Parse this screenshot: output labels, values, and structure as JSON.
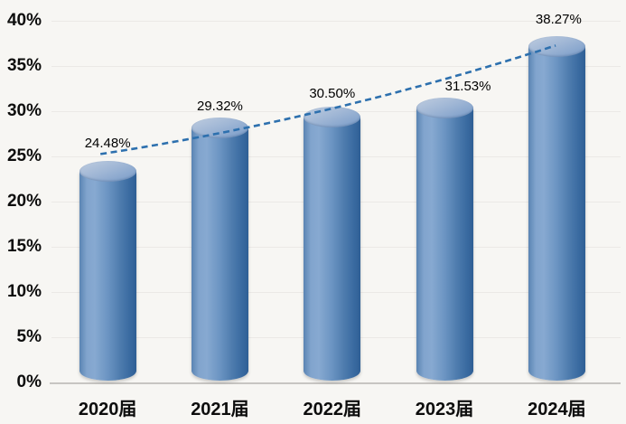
{
  "chart_data": {
    "type": "bar",
    "subtype": "3d-cylinder",
    "categories": [
      "2020届",
      "2021届",
      "2022届",
      "2023届",
      "2024届"
    ],
    "values": [
      24.48,
      29.32,
      30.5,
      31.53,
      38.27
    ],
    "value_labels": [
      "24.48%",
      "29.32%",
      "30.50%",
      "31.53%",
      "38.27%"
    ],
    "ylim": [
      0,
      40
    ],
    "ytick_step": 5,
    "ytick_labels": [
      "0%",
      "5%",
      "10%",
      "15%",
      "20%",
      "25%",
      "30%",
      "35%",
      "40%"
    ],
    "grid": true,
    "legend": false,
    "trendline": {
      "style": "dashed",
      "fit": "polynomial",
      "color": "#2d70ae"
    },
    "colors": {
      "bar_main": "#4f81bd",
      "bar_highlight": "#87a9d1",
      "bar_shadow": "#2f5f95",
      "cylinder_top": "#9fb6d5",
      "label_text": "#000000",
      "axis_text": "#0d0d0d",
      "gridline": "#ebe9e6",
      "axis_line": "#c7c5c2",
      "background": "#f7f6f3"
    }
  }
}
